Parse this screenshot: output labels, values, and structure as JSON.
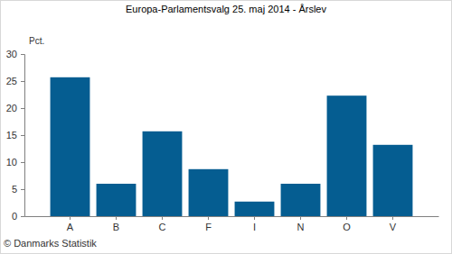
{
  "chart_data": {
    "type": "bar",
    "title": "Europa-Parlamentsvalg 25. maj 2014 - Årslev",
    "ylabel": "Pct.",
    "annotations": [
      "© Danmarks Statistik"
    ],
    "categories": [
      "A",
      "B",
      "C",
      "F",
      "I",
      "N",
      "O",
      "V"
    ],
    "values": [
      25.7,
      6.0,
      15.7,
      8.7,
      2.7,
      6.0,
      22.3,
      13.2
    ],
    "color": "#055d91",
    "ylim": [
      0,
      30
    ],
    "yticks": [
      0,
      5,
      10,
      15,
      20,
      25,
      30
    ],
    "grid": false
  }
}
